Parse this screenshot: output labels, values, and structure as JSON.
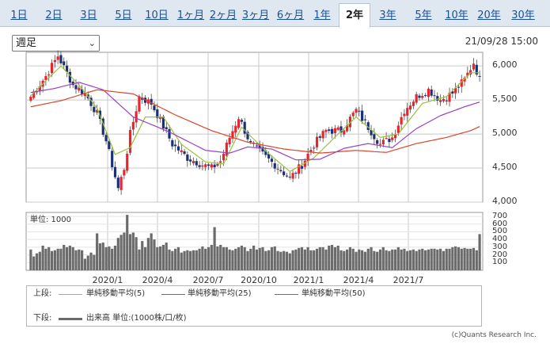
{
  "tabs": [
    {
      "label": "1日"
    },
    {
      "label": "2日"
    },
    {
      "label": "3日"
    },
    {
      "label": "5日"
    },
    {
      "label": "10日"
    },
    {
      "label": "1ヶ月"
    },
    {
      "label": "2ヶ月"
    },
    {
      "label": "3ヶ月"
    },
    {
      "label": "6ヶ月"
    },
    {
      "label": "1年"
    },
    {
      "label": "2年",
      "active": true
    },
    {
      "label": "3年"
    },
    {
      "label": "5年"
    },
    {
      "label": "10年"
    },
    {
      "label": "20年"
    },
    {
      "label": "30年"
    }
  ],
  "period_select": {
    "value": "週足"
  },
  "timestamp": "21/09/28 15:00",
  "colors": {
    "tab_link": "#1b4f93",
    "candle_up": "#e8242c",
    "candle_down": "#1c2f7a",
    "ma5": "#99c23c",
    "ma25": "#9a41c8",
    "ma50": "#d8462c",
    "volume_bar": "#6b6b6b",
    "grid": "#c9c9c9"
  },
  "chart_data": [
    {
      "type": "candlestick",
      "title": "",
      "x_labels": [
        "2020/1",
        "2020/4",
        "2020/7",
        "2020/10",
        "2021/1",
        "2021/4",
        "2021/7"
      ],
      "yticks": [
        "6,000",
        "5,500",
        "5,000",
        "4,500",
        "4,000"
      ],
      "ylim": [
        4000,
        6200
      ],
      "grid": true,
      "legend_placement": "bottom",
      "anchors": [
        [
          0,
          5550
        ],
        [
          5,
          5850
        ],
        [
          9,
          6150
        ],
        [
          14,
          5720
        ],
        [
          18,
          5600
        ],
        [
          22,
          5300
        ],
        [
          25,
          4900
        ],
        [
          27,
          4550
        ],
        [
          29,
          4200
        ],
        [
          31,
          4500
        ],
        [
          33,
          5000
        ],
        [
          36,
          5550
        ],
        [
          40,
          5450
        ],
        [
          43,
          5200
        ],
        [
          47,
          4850
        ],
        [
          52,
          4650
        ],
        [
          57,
          4550
        ],
        [
          60,
          4500
        ],
        [
          63,
          4600
        ],
        [
          66,
          4950
        ],
        [
          69,
          5250
        ],
        [
          73,
          4850
        ],
        [
          77,
          4700
        ],
        [
          81,
          4550
        ],
        [
          86,
          4350
        ],
        [
          90,
          4550
        ],
        [
          94,
          4850
        ],
        [
          98,
          5050
        ],
        [
          103,
          5050
        ],
        [
          108,
          5350
        ],
        [
          112,
          5100
        ],
        [
          116,
          4850
        ],
        [
          120,
          4950
        ],
        [
          124,
          5350
        ],
        [
          128,
          5550
        ],
        [
          132,
          5650
        ],
        [
          136,
          5500
        ],
        [
          140,
          5600
        ],
        [
          144,
          5800
        ],
        [
          147,
          6050
        ],
        [
          149,
          5800
        ]
      ],
      "series": [
        {
          "name": "単純移動平均(5)",
          "values": [
            [
              0,
              5560
            ],
            [
              10,
              6000
            ],
            [
              16,
              5720
            ],
            [
              22,
              5380
            ],
            [
              28,
              4700
            ],
            [
              33,
              4800
            ],
            [
              38,
              5250
            ],
            [
              44,
              5250
            ],
            [
              50,
              4850
            ],
            [
              58,
              4590
            ],
            [
              64,
              4560
            ],
            [
              70,
              5100
            ],
            [
              78,
              4750
            ],
            [
              86,
              4450
            ],
            [
              94,
              4650
            ],
            [
              102,
              5000
            ],
            [
              108,
              5250
            ],
            [
              116,
              4950
            ],
            [
              122,
              5000
            ],
            [
              130,
              5450
            ],
            [
              138,
              5550
            ],
            [
              146,
              5900
            ],
            [
              149,
              5900
            ]
          ]
        },
        {
          "name": "単純移動平均(25)",
          "values": [
            [
              0,
              5610
            ],
            [
              8,
              5670
            ],
            [
              16,
              5760
            ],
            [
              24,
              5650
            ],
            [
              34,
              5250
            ],
            [
              46,
              5030
            ],
            [
              58,
              4760
            ],
            [
              66,
              4720
            ],
            [
              72,
              4810
            ],
            [
              80,
              4780
            ],
            [
              88,
              4620
            ],
            [
              96,
              4630
            ],
            [
              104,
              4790
            ],
            [
              112,
              4860
            ],
            [
              120,
              4800
            ],
            [
              128,
              5080
            ],
            [
              136,
              5270
            ],
            [
              144,
              5400
            ],
            [
              149,
              5470
            ]
          ]
        },
        {
          "name": "単純移動平均(50)",
          "values": [
            [
              0,
              5400
            ],
            [
              10,
              5490
            ],
            [
              22,
              5650
            ],
            [
              34,
              5590
            ],
            [
              48,
              5280
            ],
            [
              60,
              5050
            ],
            [
              72,
              4880
            ],
            [
              84,
              4780
            ],
            [
              96,
              4720
            ],
            [
              108,
              4760
            ],
            [
              118,
              4730
            ],
            [
              128,
              4860
            ],
            [
              138,
              4950
            ],
            [
              146,
              5050
            ],
            [
              149,
              5110
            ]
          ]
        }
      ]
    },
    {
      "type": "bar",
      "title": "",
      "unit_label": "単位: 1000",
      "yticks": [
        "700",
        "600",
        "500",
        "400",
        "300",
        "200",
        "100"
      ],
      "ylim": [
        0,
        700
      ],
      "values": [
        270,
        180,
        220,
        240,
        320,
        280,
        300,
        250,
        260,
        280,
        280,
        330,
        300,
        320,
        300,
        260,
        270,
        260,
        150,
        190,
        230,
        200,
        480,
        350,
        360,
        300,
        310,
        280,
        320,
        420,
        460,
        490,
        720,
        470,
        490,
        430,
        270,
        380,
        300,
        420,
        480,
        400,
        300,
        310,
        330,
        360,
        270,
        250,
        280,
        300,
        230,
        250,
        260,
        250,
        260,
        260,
        280,
        310,
        280,
        300,
        330,
        560,
        310,
        330,
        300,
        300,
        270,
        260,
        280,
        300,
        320,
        300,
        250,
        280,
        320,
        270,
        290,
        300,
        250,
        260,
        300,
        310,
        250,
        240,
        250,
        240,
        220,
        260,
        270,
        290,
        300,
        270,
        300,
        260,
        260,
        280,
        300,
        300,
        270,
        320,
        330,
        300,
        320,
        260,
        250,
        270,
        300,
        280,
        240,
        270,
        260,
        240,
        280,
        300,
        250,
        240,
        270,
        300,
        260,
        250,
        270,
        270,
        300,
        270,
        280,
        250,
        260,
        270,
        250,
        270,
        280,
        260,
        270,
        280,
        280,
        270,
        280,
        250,
        280,
        280,
        300,
        310,
        300,
        280,
        290,
        280,
        280,
        290,
        260,
        470
      ]
    }
  ],
  "legend": {
    "upper_label": "上段:",
    "lower_label": "下段:",
    "ma5": "単純移動平均(5)",
    "ma25": "単純移動平均(25)",
    "ma50": "単純移動平均(50)",
    "volume": "出来高 単位:(1000株/口/枚)"
  },
  "copyright": "(c)Quants Research Inc."
}
